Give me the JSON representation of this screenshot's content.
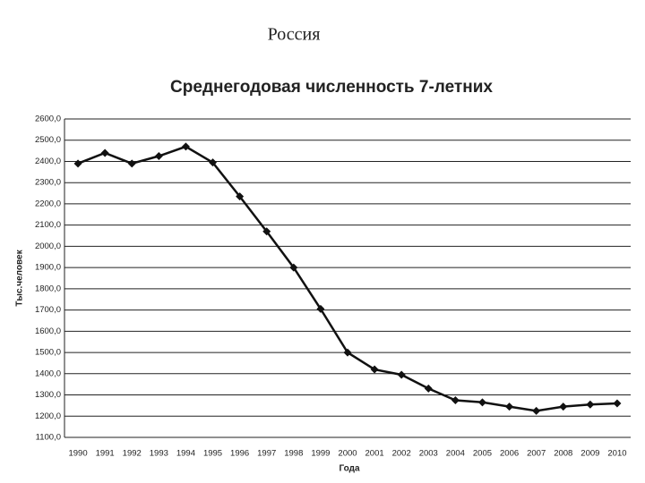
{
  "heading": "Россия",
  "chart_data": {
    "type": "line",
    "title": "Среднегодовая численность 7-летних",
    "y_label": "Тыс.человек",
    "x_label": "Года",
    "categories": [
      "1990",
      "1991",
      "1992",
      "1993",
      "1994",
      "1995",
      "1996",
      "1997",
      "1998",
      "1999",
      "2000",
      "2001",
      "2002",
      "2003",
      "2004",
      "2005",
      "2006",
      "2007",
      "2008",
      "2009",
      "2010"
    ],
    "values": [
      2390,
      2440,
      2390,
      2425,
      2470,
      2395,
      2235,
      2070,
      1900,
      1705,
      1500,
      1420,
      1395,
      1330,
      1275,
      1265,
      1245,
      1225,
      1245,
      1255,
      1260
    ],
    "color": "#111111",
    "ylim": [
      1100,
      2600
    ],
    "yticks": [
      {
        "value": 1100,
        "label": "1100,0"
      },
      {
        "value": 1200,
        "label": "1200,0"
      },
      {
        "value": 1300,
        "label": "1300,0"
      },
      {
        "value": 1400,
        "label": "1400,0"
      },
      {
        "value": 1500,
        "label": "1500,0"
      },
      {
        "value": 1600,
        "label": "1600,0"
      },
      {
        "value": 1700,
        "label": "1700,0"
      },
      {
        "value": 1800,
        "label": "1800,0"
      },
      {
        "value": 1900,
        "label": "1900,0"
      },
      {
        "value": 2000,
        "label": "2000,0"
      },
      {
        "value": 2100,
        "label": "2100,0"
      },
      {
        "value": 2200,
        "label": "2200,0"
      },
      {
        "value": 2300,
        "label": "2300,0"
      },
      {
        "value": 2400,
        "label": "2400,0"
      },
      {
        "value": 2500,
        "label": "2500,0"
      },
      {
        "value": 2600,
        "label": "2600,0"
      }
    ],
    "grid": true
  }
}
